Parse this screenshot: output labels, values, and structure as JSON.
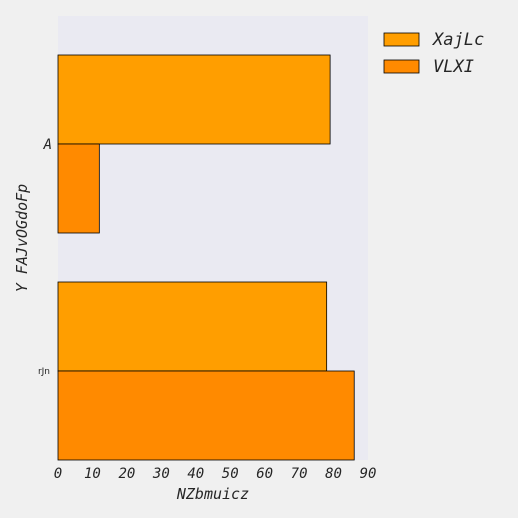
{
  "chart_data": {
    "type": "bar",
    "orientation": "horizontal",
    "categories": [
      "A",
      "rJn"
    ],
    "series": [
      {
        "name": "XajLc",
        "values": [
          79,
          78
        ],
        "color": "#ff9e00"
      },
      {
        "name": "VLXI",
        "values": [
          12,
          86
        ],
        "color": "#ff8a00"
      }
    ],
    "xlabel": "NZbmuicz",
    "ylabel": "Y FAJvOGdoFp",
    "xlim": [
      0,
      90
    ],
    "xticks": [
      "0",
      "10",
      "20",
      "30",
      "40",
      "50",
      "60",
      "70",
      "80",
      "90"
    ],
    "grid": false,
    "legend_position": "outside-top-right",
    "plot_background": "#eaeaf2",
    "page_background": "#f0f0f0"
  }
}
